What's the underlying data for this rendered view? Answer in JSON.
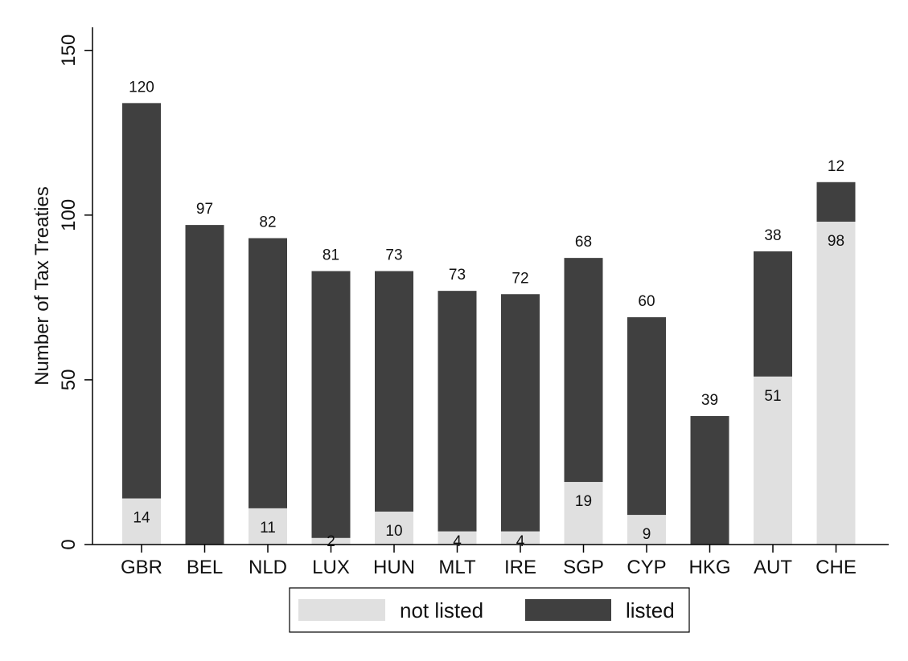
{
  "chart_data": {
    "type": "bar",
    "stacked": true,
    "categories": [
      "GBR",
      "BEL",
      "NLD",
      "LUX",
      "HUN",
      "MLT",
      "IRE",
      "SGP",
      "CYP",
      "HKG",
      "AUT",
      "CHE"
    ],
    "series": [
      {
        "name": "not listed",
        "color": "#e0e0e0",
        "values": [
          14,
          0,
          11,
          2,
          10,
          4,
          4,
          19,
          9,
          0,
          51,
          98
        ],
        "labels": [
          "14",
          "",
          "11",
          "2",
          "10",
          "4",
          "4",
          "19",
          "9",
          "",
          "51",
          "98"
        ]
      },
      {
        "name": "listed",
        "color": "#404040",
        "values": [
          120,
          97,
          82,
          81,
          73,
          73,
          72,
          68,
          60,
          39,
          38,
          12
        ],
        "labels": [
          "120",
          "97",
          "82",
          "81",
          "73",
          "73",
          "72",
          "68",
          "60",
          "39",
          "38",
          "12"
        ]
      }
    ],
    "ylabel": "Number of Tax Treaties",
    "xlabel": "",
    "title": "",
    "ylim": [
      0,
      157
    ],
    "yticks": [
      0,
      50,
      100,
      150
    ],
    "grid": false,
    "legend": {
      "position": "bottom",
      "entries": [
        "not listed",
        "listed"
      ]
    }
  }
}
